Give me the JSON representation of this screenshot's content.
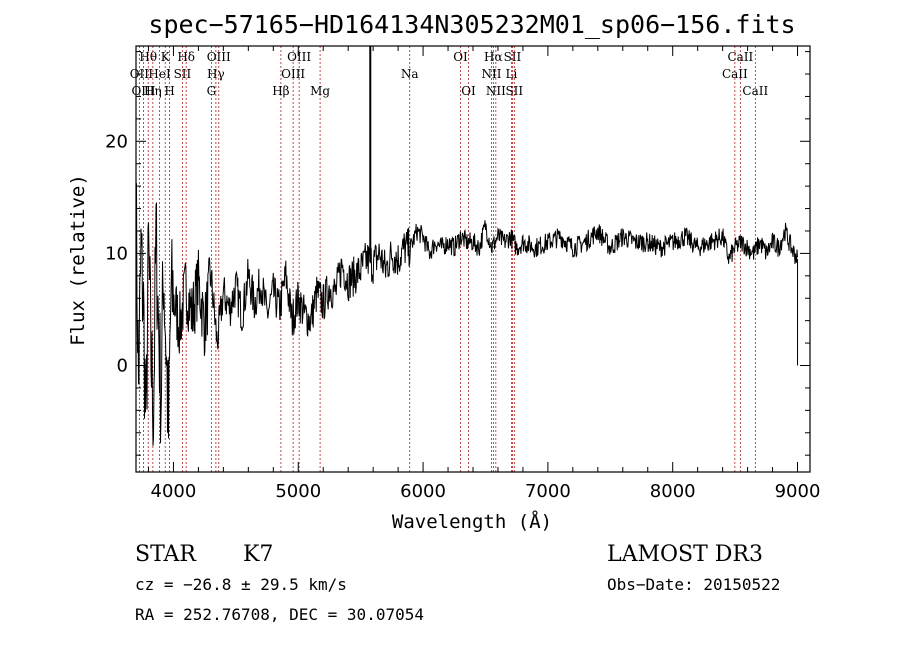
{
  "chart_data": {
    "type": "line",
    "title": "spec−57165−HD164134N305232M01_sp06−156.fits",
    "xlabel": "Wavelength (Å)",
    "ylabel": "Flux (relative)",
    "xlim": [
      3700,
      9100
    ],
    "ylim": [
      -9.5,
      28.5
    ],
    "xticks": [
      4000,
      5000,
      6000,
      7000,
      8000,
      9000
    ],
    "yticks": [
      0,
      10,
      20
    ],
    "series": [
      {
        "name": "spectrum",
        "x": [
          3700,
          3720,
          3740,
          3760,
          3780,
          3800,
          3820,
          3840,
          3860,
          3880,
          3900,
          3920,
          3940,
          3960,
          3980,
          4000,
          4050,
          4100,
          4150,
          4200,
          4250,
          4300,
          4350,
          4400,
          4450,
          4500,
          4550,
          4600,
          4650,
          4700,
          4750,
          4800,
          4850,
          4900,
          4950,
          5000,
          5050,
          5100,
          5150,
          5200,
          5250,
          5300,
          5350,
          5400,
          5450,
          5500,
          5550,
          5600,
          5650,
          5700,
          5750,
          5800,
          5850,
          5900,
          5950,
          6000,
          6050,
          6100,
          6150,
          6200,
          6250,
          6300,
          6350,
          6400,
          6450,
          6500,
          6550,
          6600,
          6650,
          6700,
          6750,
          6800,
          6900,
          7000,
          7100,
          7200,
          7300,
          7400,
          7500,
          7600,
          7700,
          7800,
          7900,
          8000,
          8100,
          8200,
          8300,
          8400,
          8450,
          8500,
          8550,
          8600,
          8650,
          8700,
          8750,
          8800,
          8850,
          8900,
          8950,
          9000
        ],
        "y": [
          14.5,
          -2.0,
          10.0,
          5.0,
          -6.0,
          10.5,
          1.0,
          -4.0,
          11.5,
          4.0,
          -3.0,
          9.0,
          2.0,
          -6.0,
          6.0,
          6.0,
          3.5,
          7.0,
          4.5,
          7.5,
          3.5,
          8.0,
          2.0,
          6.5,
          5.0,
          7.0,
          4.5,
          8.0,
          5.5,
          7.5,
          4.5,
          6.5,
          5.0,
          8.0,
          4.0,
          6.0,
          4.5,
          4.0,
          6.5,
          5.5,
          7.0,
          6.5,
          9.0,
          7.5,
          8.0,
          8.5,
          9.5,
          9.0,
          10.0,
          8.5,
          10.0,
          9.5,
          10.5,
          10.5,
          12.0,
          11.5,
          10.0,
          11.0,
          10.5,
          11.0,
          10.5,
          11.5,
          11.0,
          11.0,
          10.5,
          12.5,
          10.5,
          11.5,
          11.0,
          11.5,
          10.5,
          11.0,
          10.5,
          11.0,
          11.5,
          10.5,
          11.0,
          12.0,
          10.5,
          11.5,
          11.0,
          11.0,
          10.5,
          11.0,
          11.5,
          10.5,
          11.0,
          11.5,
          9.5,
          10.5,
          11.0,
          10.5,
          10.0,
          11.0,
          10.0,
          11.0,
          10.5,
          12.0,
          10.5,
          9.5
        ]
      }
    ],
    "spikes": [
      {
        "x": 5577,
        "y": 28.5
      }
    ],
    "emission_lines": [
      {
        "name": "Hθ",
        "wavelength": 3798,
        "row": 1
      },
      {
        "name": "OII",
        "wavelength": 3727,
        "row": 2
      },
      {
        "name": "OIII",
        "wavelength": 3760,
        "row": 3
      },
      {
        "name": "Hη",
        "wavelength": 3835,
        "row": 3
      },
      {
        "name": "HeI",
        "wavelength": 3889,
        "row": 2
      },
      {
        "name": "K",
        "wavelength": 3934,
        "row": 1
      },
      {
        "name": "H",
        "wavelength": 3969,
        "row": 3
      },
      {
        "name": "SII",
        "wavelength": 4072,
        "row": 2
      },
      {
        "name": "Hδ",
        "wavelength": 4102,
        "row": 1
      },
      {
        "name": "G",
        "wavelength": 4304,
        "row": 3
      },
      {
        "name": "OIII",
        "wavelength": 4363,
        "row": 1
      },
      {
        "name": "Hγ",
        "wavelength": 4340,
        "row": 2
      },
      {
        "name": "Hβ",
        "wavelength": 4861,
        "row": 3
      },
      {
        "name": "OIII",
        "wavelength": 5007,
        "row": 1
      },
      {
        "name": "OIII",
        "wavelength": 4959,
        "row": 2
      },
      {
        "name": "Mg",
        "wavelength": 5175,
        "row": 3
      },
      {
        "name": "Na",
        "wavelength": 5893,
        "row": 2
      },
      {
        "name": "OI",
        "wavelength": 6300,
        "row": 1
      },
      {
        "name": "OI",
        "wavelength": 6364,
        "row": 3
      },
      {
        "name": "Hα",
        "wavelength": 6563,
        "row": 1
      },
      {
        "name": "NII",
        "wavelength": 6548,
        "row": 2
      },
      {
        "name": "NII",
        "wavelength": 6583,
        "row": 3
      },
      {
        "name": "SII",
        "wavelength": 6716,
        "row": 1
      },
      {
        "name": "Li",
        "wavelength": 6708,
        "row": 2
      },
      {
        "name": "SII",
        "wavelength": 6731,
        "row": 3
      },
      {
        "name": "CaII",
        "wavelength": 8498,
        "row": 2
      },
      {
        "name": "CaII",
        "wavelength": 8542,
        "row": 1
      },
      {
        "name": "CaII",
        "wavelength": 8662,
        "row": 3
      }
    ]
  },
  "info": {
    "class": "STAR",
    "subclass": "K7",
    "survey": "LAMOST DR3",
    "cz": "cz = −26.8 ± 29.5 km/s",
    "obs_date": "Obs−Date: 20150522",
    "radec": "RA = 252.76708, DEC =  30.07054"
  },
  "colors": {
    "line_marker": "#b02020",
    "spectrum": "#000000",
    "axes": "#000000"
  }
}
